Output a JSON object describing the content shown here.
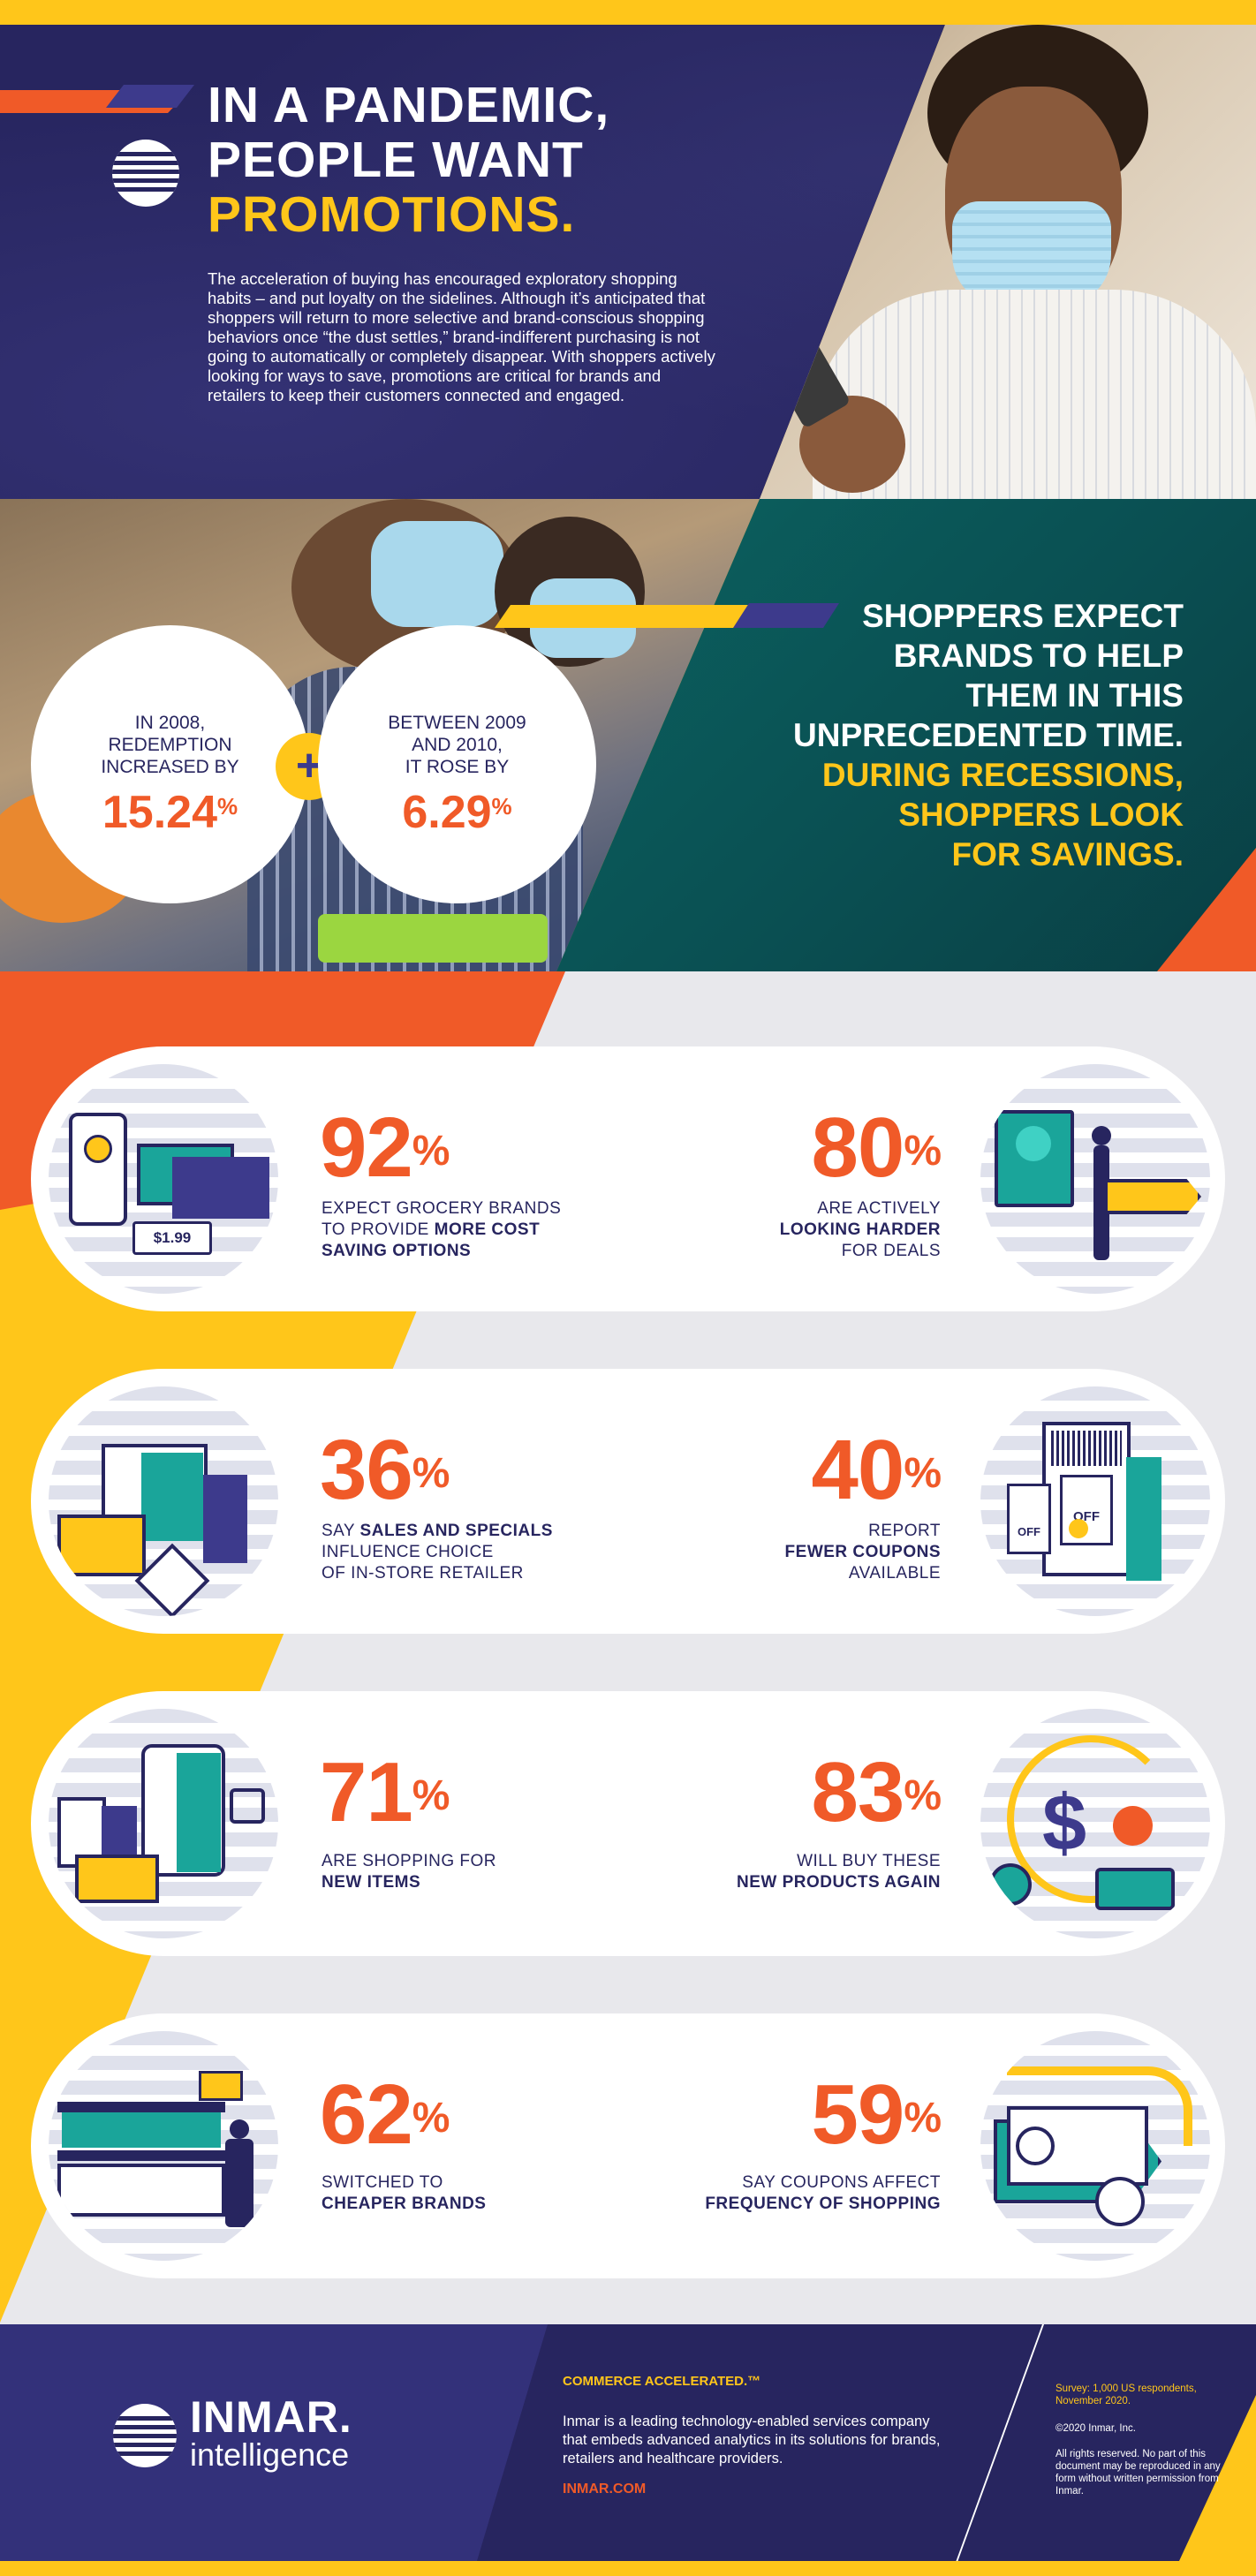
{
  "header": {
    "title_line1": "IN A PANDEMIC,",
    "title_line2": "PEOPLE WANT",
    "title_line3": "PROMOTIONS.",
    "body": "The acceleration of buying has encouraged exploratory shopping habits – and put loyalty on the sidelines. Although it’s anticipated that shoppers will return to more selective and brand-conscious shopping behaviors once “the dust settles,” brand-indifferent purchasing is not going to automatically or completely disappear. With shoppers actively looking for ways to save, promotions are critical for brands and retailers to keep their customers connected and engaged."
  },
  "redemption": {
    "left": {
      "label_line1": "IN 2008,",
      "label_line2": "REDEMPTION",
      "label_line3": "INCREASED BY",
      "value": "15.24",
      "unit": "%"
    },
    "plus": "+",
    "right": {
      "label_line1": "BETWEEN 2009",
      "label_line2": "AND 2010,",
      "label_line3": "IT ROSE BY",
      "value": "6.29",
      "unit": "%"
    }
  },
  "expectations": {
    "line1": "SHOPPERS EXPECT",
    "line2": "BRANDS TO HELP",
    "line3": "THEM IN THIS",
    "line4": "UNPRECEDENTED TIME.",
    "line5": "DURING RECESSIONS,",
    "line6": "SHOPPERS LOOK",
    "line7": "FOR SAVINGS."
  },
  "stats": [
    {
      "value": "92",
      "unit": "%",
      "l1": "EXPECT GROCERY BRANDS",
      "l2a": "TO PROVIDE ",
      "l2b": "MORE COST",
      "l3": "SAVING OPTIONS",
      "price": "$1.99"
    },
    {
      "value": "80",
      "unit": "%",
      "l1": "ARE ACTIVELY",
      "l2": "LOOKING HARDER",
      "l3": "FOR DEALS"
    },
    {
      "value": "36",
      "unit": "%",
      "l1a": "SAY ",
      "l1b": "SALES AND SPECIALS",
      "l2": "INFLUENCE CHOICE",
      "l3": "OF IN-STORE RETAILER"
    },
    {
      "value": "40",
      "unit": "%",
      "l1": "REPORT",
      "l2": "FEWER COUPONS",
      "l3": "AVAILABLE",
      "tag1": "OFF",
      "tag2": "OFF"
    },
    {
      "value": "71",
      "unit": "%",
      "l1": "ARE SHOPPING FOR",
      "l2": "NEW ITEMS"
    },
    {
      "value": "83",
      "unit": "%",
      "l1": "WILL BUY THESE",
      "l2": "NEW PRODUCTS AGAIN"
    },
    {
      "value": "62",
      "unit": "%",
      "l1": "SWITCHED TO",
      "l2": "CHEAPER BRANDS"
    },
    {
      "value": "59",
      "unit": "%",
      "l1": "SAY COUPONS AFFECT",
      "l2": "FREQUENCY OF SHOPPING"
    }
  ],
  "footer": {
    "brand": "INMAR.",
    "brand_sub": "intelligence",
    "tagline": "COMMERCE ACCELERATED.™",
    "description": "Inmar is a leading technology-enabled services company that embeds advanced analytics in its solutions for brands, retailers and healthcare providers.",
    "url": "INMAR.COM",
    "survey": "Survey: 1,000 US respondents, November 2020.",
    "copyright": "©2020 Inmar, Inc.",
    "rights": "All rights reserved. No part of this document may be reproduced in any form without written permission from Inmar."
  },
  "colors": {
    "navy": "#27255f",
    "yellow": "#ffc61a",
    "orange": "#f05a28",
    "teal": "#0e6e6c"
  }
}
